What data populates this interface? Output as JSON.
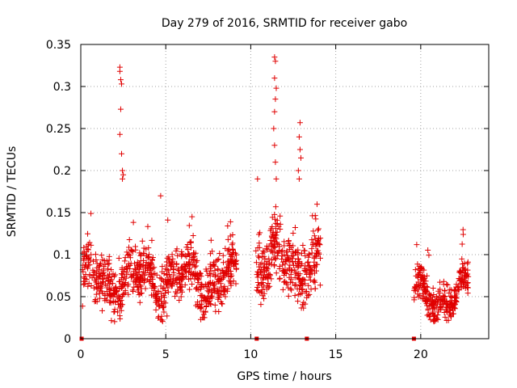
{
  "chart_data": {
    "type": "scatter",
    "title": "Day 279 of 2016, SRMTID for receiver gabo",
    "xlabel": "GPS time / hours",
    "ylabel": "SRMTID / TECUs",
    "xlim": [
      0,
      24
    ],
    "ylim": [
      0,
      0.35
    ],
    "xticks": [
      0,
      5,
      10,
      15,
      20
    ],
    "xtick_labels": [
      "0",
      "5",
      "10",
      "15",
      "20"
    ],
    "yticks": [
      0,
      0.05,
      0.1,
      0.15,
      0.2,
      0.25,
      0.3,
      0.35
    ],
    "ytick_labels": [
      "0",
      "0.05",
      "0.1",
      "0.15",
      "0.2",
      "0.25",
      "0.3",
      "0.35"
    ],
    "grid": true,
    "marker": "plus",
    "color": "#e00000",
    "series": [
      {
        "name": "SRMTID",
        "segments": [
          {
            "x_start": 0.1,
            "x_end": 9.2,
            "baseline": 0.07,
            "spread": 0.03
          },
          {
            "x_start": 10.3,
            "x_end": 14.1,
            "baseline": 0.09,
            "spread": 0.035
          },
          {
            "x_start": 19.6,
            "x_end": 22.8,
            "baseline": 0.05,
            "spread": 0.02
          }
        ],
        "peaks": [
          {
            "x": 2.3,
            "y": 0.323
          },
          {
            "x": 2.3,
            "y": 0.318
          },
          {
            "x": 2.35,
            "y": 0.308
          },
          {
            "x": 2.4,
            "y": 0.303
          },
          {
            "x": 2.35,
            "y": 0.273
          },
          {
            "x": 2.3,
            "y": 0.243
          },
          {
            "x": 2.4,
            "y": 0.22
          },
          {
            "x": 2.45,
            "y": 0.2
          },
          {
            "x": 2.5,
            "y": 0.195
          },
          {
            "x": 2.45,
            "y": 0.19
          },
          {
            "x": 4.7,
            "y": 0.17
          },
          {
            "x": 11.4,
            "y": 0.335
          },
          {
            "x": 11.45,
            "y": 0.33
          },
          {
            "x": 11.4,
            "y": 0.31
          },
          {
            "x": 11.5,
            "y": 0.298
          },
          {
            "x": 11.45,
            "y": 0.285
          },
          {
            "x": 11.4,
            "y": 0.27
          },
          {
            "x": 11.35,
            "y": 0.25
          },
          {
            "x": 11.4,
            "y": 0.23
          },
          {
            "x": 11.45,
            "y": 0.21
          },
          {
            "x": 11.5,
            "y": 0.19
          },
          {
            "x": 10.4,
            "y": 0.19
          },
          {
            "x": 12.9,
            "y": 0.257
          },
          {
            "x": 12.85,
            "y": 0.24
          },
          {
            "x": 12.9,
            "y": 0.225
          },
          {
            "x": 12.95,
            "y": 0.215
          },
          {
            "x": 12.8,
            "y": 0.2
          },
          {
            "x": 12.85,
            "y": 0.19
          },
          {
            "x": 13.9,
            "y": 0.16
          }
        ],
        "baseline_markers": [
          0.05,
          10.35,
          13.3,
          19.6
        ]
      }
    ]
  }
}
